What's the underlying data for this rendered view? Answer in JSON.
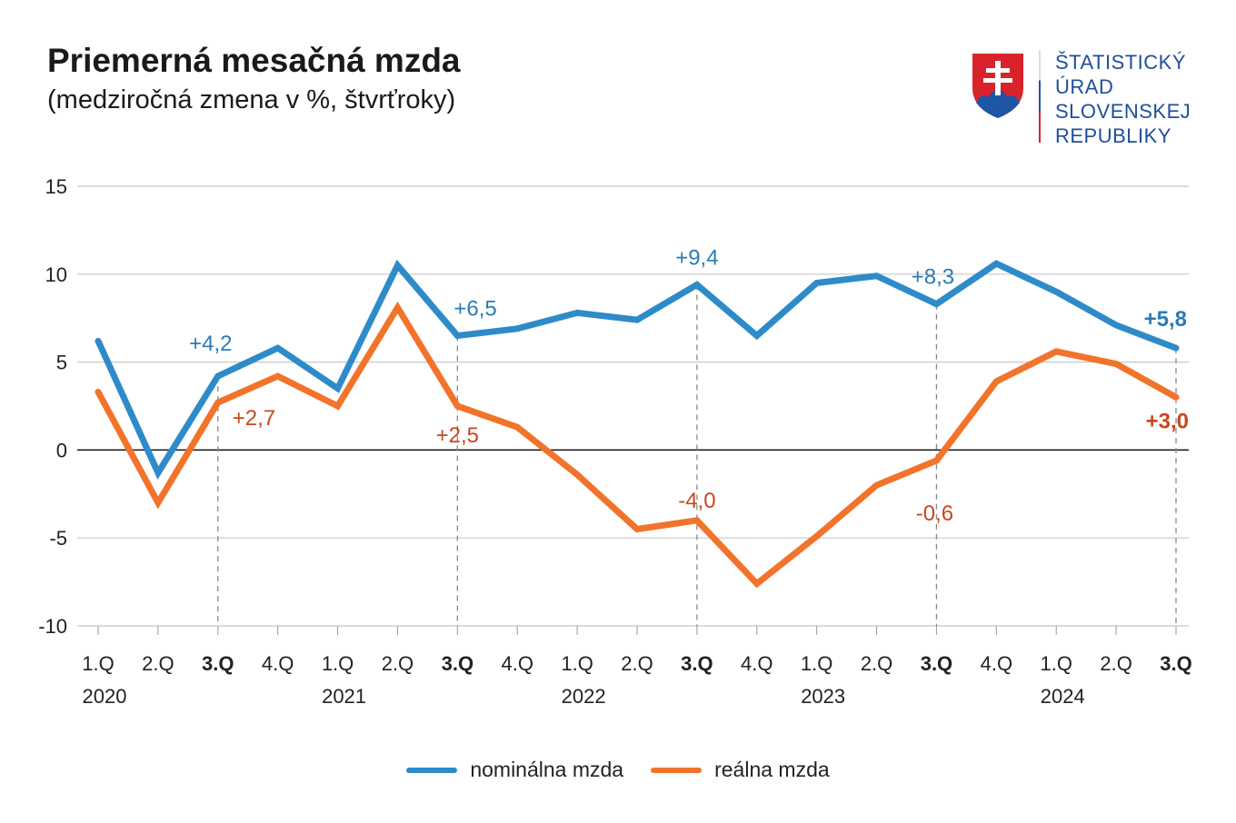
{
  "title": "Priemerná mesačná mzda",
  "subtitle": "(medziročná zmena v %, štvrťroky)",
  "logo": {
    "lines": [
      "ŠTATISTICKÝ",
      "ÚRAD",
      "SLOVENSKEJ",
      "REPUBLIKY"
    ]
  },
  "chart_data": {
    "type": "line",
    "title": "Priemerná mesačná mzda",
    "subtitle": "(medziročná zmena v %, štvrťroky)",
    "categories": [
      "1.Q",
      "2.Q",
      "3.Q",
      "4.Q",
      "1.Q",
      "2.Q",
      "3.Q",
      "4.Q",
      "1.Q",
      "2.Q",
      "3.Q",
      "4.Q",
      "1.Q",
      "2.Q",
      "3.Q",
      "4.Q",
      "1.Q",
      "2.Q",
      "3.Q"
    ],
    "bold_categories": [
      2,
      6,
      10,
      14,
      18
    ],
    "years": [
      {
        "label": "2020",
        "index": 0
      },
      {
        "label": "2021",
        "index": 4
      },
      {
        "label": "2022",
        "index": 8
      },
      {
        "label": "2023",
        "index": 12
      },
      {
        "label": "2024",
        "index": 16
      }
    ],
    "ylim": [
      -10,
      15
    ],
    "yticks": [
      15,
      10,
      5,
      0,
      -5,
      -10
    ],
    "grid": true,
    "legend_position": "bottom",
    "series": [
      {
        "name": "nominálna mzda",
        "color": "#2E8BC9",
        "label_color": "#2B7BB3",
        "values": [
          6.2,
          -1.3,
          4.2,
          5.8,
          3.5,
          10.5,
          6.5,
          6.9,
          7.8,
          7.4,
          9.4,
          6.5,
          9.5,
          9.9,
          8.3,
          10.6,
          9.0,
          7.1,
          5.8
        ]
      },
      {
        "name": "reálna mzda",
        "color": "#F2732A",
        "label_color": "#C9471F",
        "values": [
          3.3,
          -3.0,
          2.7,
          4.2,
          2.5,
          8.1,
          2.5,
          1.3,
          -1.4,
          -4.5,
          -4.0,
          -7.6,
          -4.9,
          -2.0,
          -0.6,
          3.9,
          5.6,
          4.9,
          3.0
        ]
      }
    ],
    "annotations": [
      {
        "series": 0,
        "index": 2,
        "text": "+4,2",
        "bold": false
      },
      {
        "series": 1,
        "index": 2,
        "text": "+2,7",
        "bold": false
      },
      {
        "series": 0,
        "index": 6,
        "text": "+6,5",
        "bold": false
      },
      {
        "series": 1,
        "index": 6,
        "text": "+2,5",
        "bold": false
      },
      {
        "series": 0,
        "index": 10,
        "text": "+9,4",
        "bold": false
      },
      {
        "series": 1,
        "index": 10,
        "text": "-4,0",
        "bold": false
      },
      {
        "series": 0,
        "index": 14,
        "text": "+8,3",
        "bold": false
      },
      {
        "series": 1,
        "index": 14,
        "text": "-0,6",
        "bold": false
      },
      {
        "series": 0,
        "index": 18,
        "text": "+5,8",
        "bold": true
      },
      {
        "series": 1,
        "index": 18,
        "text": "+3,0",
        "bold": true
      }
    ]
  }
}
